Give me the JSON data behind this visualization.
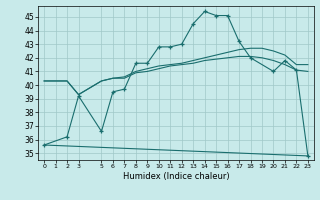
{
  "xlabel": "Humidex (Indice chaleur)",
  "background_color": "#c8eaea",
  "grid_color": "#a0c8c8",
  "line_color": "#1a6e6e",
  "xlim": [
    -0.5,
    23.5
  ],
  "ylim": [
    34.5,
    45.8
  ],
  "yticks": [
    35,
    36,
    37,
    38,
    39,
    40,
    41,
    42,
    43,
    44,
    45
  ],
  "xticks": [
    0,
    1,
    2,
    3,
    5,
    6,
    7,
    8,
    9,
    10,
    11,
    12,
    13,
    14,
    15,
    16,
    17,
    18,
    19,
    20,
    21,
    22,
    23
  ],
  "line1_x": [
    0,
    2,
    3,
    5,
    6,
    7,
    8,
    9,
    10,
    11,
    12,
    13,
    14,
    15,
    16,
    17,
    18,
    20,
    21,
    22,
    23
  ],
  "line1_y": [
    35.6,
    36.2,
    39.2,
    36.6,
    39.5,
    39.7,
    41.6,
    41.6,
    42.8,
    42.8,
    43.0,
    44.5,
    45.4,
    45.1,
    45.1,
    43.2,
    42.0,
    41.0,
    41.8,
    41.1,
    34.8
  ],
  "line2_x": [
    0,
    2,
    3,
    5,
    6,
    7,
    8,
    9,
    10,
    11,
    12,
    13,
    14,
    15,
    16,
    17,
    18,
    19,
    20,
    21,
    22,
    23
  ],
  "line2_y": [
    40.3,
    40.3,
    39.3,
    40.3,
    40.5,
    40.6,
    41.0,
    41.2,
    41.4,
    41.5,
    41.6,
    41.8,
    42.0,
    42.2,
    42.4,
    42.6,
    42.7,
    42.7,
    42.5,
    42.2,
    41.5,
    41.5
  ],
  "line3_x": [
    0,
    2,
    3,
    5,
    6,
    7,
    8,
    9,
    10,
    11,
    12,
    13,
    14,
    15,
    16,
    17,
    18,
    19,
    20,
    21,
    22,
    23
  ],
  "line3_y": [
    40.3,
    40.3,
    39.3,
    40.3,
    40.5,
    40.5,
    40.9,
    41.0,
    41.2,
    41.4,
    41.5,
    41.6,
    41.8,
    41.9,
    42.0,
    42.1,
    42.1,
    42.0,
    41.8,
    41.5,
    41.1,
    41.0
  ],
  "line4_x": [
    0,
    23
  ],
  "line4_y": [
    35.6,
    34.8
  ]
}
